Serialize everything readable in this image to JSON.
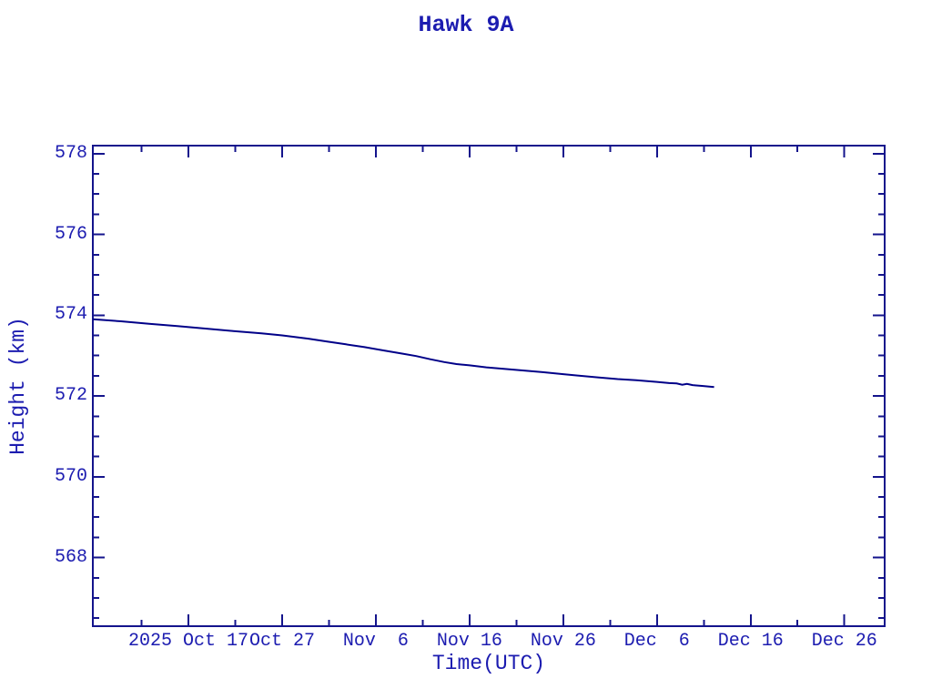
{
  "page": {
    "background": "#ffffff"
  },
  "colors": {
    "text": "#1c1cb0",
    "axis": "#14148c",
    "line": "#000088",
    "background": "#ffffff"
  },
  "chart_data": {
    "type": "line",
    "title": "Hawk 9A",
    "xlabel": "Time(UTC)",
    "ylabel": "Height (km)",
    "legend": "none",
    "grid": "off",
    "x_unit": "days since 2025 Oct 7 (left edge of x-axis)",
    "x_range_days": [
      0,
      84.5
    ],
    "y_range": [
      566.3,
      578.2
    ],
    "x_major_ticks": [
      {
        "day": 10.2,
        "label": "2025 Oct 17"
      },
      {
        "day": 20.2,
        "label": "Oct 27"
      },
      {
        "day": 30.2,
        "label": "Nov  6"
      },
      {
        "day": 40.2,
        "label": "Nov 16"
      },
      {
        "day": 50.2,
        "label": "Nov 26"
      },
      {
        "day": 60.2,
        "label": "Dec  6"
      },
      {
        "day": 70.2,
        "label": "Dec 16"
      },
      {
        "day": 80.2,
        "label": "Dec 26"
      }
    ],
    "x_minor_tick_days": [
      5.2,
      15.2,
      25.2,
      35.2,
      45.2,
      55.2,
      65.2,
      75.2
    ],
    "y_major_ticks": [
      {
        "value": 578,
        "label": "578"
      },
      {
        "value": 576,
        "label": "576"
      },
      {
        "value": 574,
        "label": "574"
      },
      {
        "value": 572,
        "label": "572"
      },
      {
        "value": 570,
        "label": "570"
      },
      {
        "value": 568,
        "label": "568"
      }
    ],
    "y_minor_ticks": [
      577.5,
      577.0,
      576.5,
      575.5,
      575.0,
      574.5,
      573.5,
      573.0,
      572.5,
      571.5,
      571.0,
      570.5,
      569.5,
      569.0,
      568.5,
      567.5,
      567.0,
      566.5
    ],
    "series": [
      {
        "name": "Hawk 9A height",
        "color": "#000088",
        "points_day_km": [
          [
            0.0,
            573.9
          ],
          [
            3.0,
            573.85
          ],
          [
            6.0,
            573.79
          ],
          [
            9.0,
            573.73
          ],
          [
            12.0,
            573.67
          ],
          [
            15.0,
            573.61
          ],
          [
            18.0,
            573.55
          ],
          [
            20.2,
            573.5
          ],
          [
            23.0,
            573.42
          ],
          [
            25.0,
            573.35
          ],
          [
            27.0,
            573.28
          ],
          [
            29.0,
            573.21
          ],
          [
            31.0,
            573.13
          ],
          [
            33.0,
            573.05
          ],
          [
            34.5,
            572.99
          ],
          [
            36.0,
            572.91
          ],
          [
            37.5,
            572.84
          ],
          [
            38.8,
            572.79
          ],
          [
            40.2,
            572.76
          ],
          [
            42.0,
            572.71
          ],
          [
            44.0,
            572.67
          ],
          [
            46.0,
            572.63
          ],
          [
            48.0,
            572.59
          ],
          [
            50.2,
            572.54
          ],
          [
            52.0,
            572.5
          ],
          [
            54.0,
            572.46
          ],
          [
            56.0,
            572.42
          ],
          [
            58.0,
            572.39
          ],
          [
            60.2,
            572.35
          ],
          [
            61.5,
            572.32
          ],
          [
            62.3,
            572.31
          ],
          [
            62.9,
            572.28
          ],
          [
            63.4,
            572.3
          ],
          [
            64.0,
            572.27
          ],
          [
            65.0,
            572.25
          ],
          [
            66.3,
            572.22
          ]
        ]
      }
    ]
  }
}
